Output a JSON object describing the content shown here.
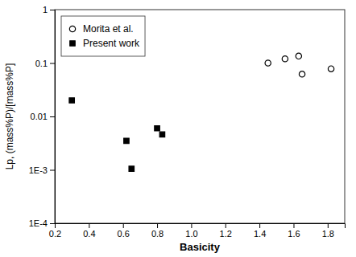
{
  "chart_data": {
    "type": "scatter",
    "xlabel": "Basicity",
    "ylabel": "Lp, (mass%P)/[mass%P]",
    "series": [
      {
        "name": "Morita et al.",
        "color": "black",
        "marker": "circle",
        "x": [
          1.45,
          1.55,
          1.63,
          1.65,
          1.82
        ],
        "values": [
          0.1,
          0.12,
          0.135,
          0.062,
          0.078
        ]
      },
      {
        "name": "Present work",
        "color": "black",
        "marker": "square",
        "x": [
          0.3,
          0.62,
          0.65,
          0.8,
          0.83
        ],
        "values": [
          0.02,
          0.0035,
          0.00105,
          0.006,
          0.0046
        ]
      }
    ],
    "xlim": [
      0.2,
      1.9
    ],
    "xticks": [
      0.2,
      0.4,
      0.6,
      0.8,
      {
        "value": 1.0,
        "label": "1.0"
      },
      1.2,
      1.4,
      1.6,
      1.8
    ],
    "ylim": [
      0.0001,
      1
    ],
    "yticks": [
      {
        "value": 0.0001,
        "label": "1E-4"
      },
      {
        "value": 0.001,
        "label": "1E-3"
      },
      0.01,
      0.1,
      1
    ],
    "log": "y",
    "grid": false,
    "legend": "upper left"
  }
}
